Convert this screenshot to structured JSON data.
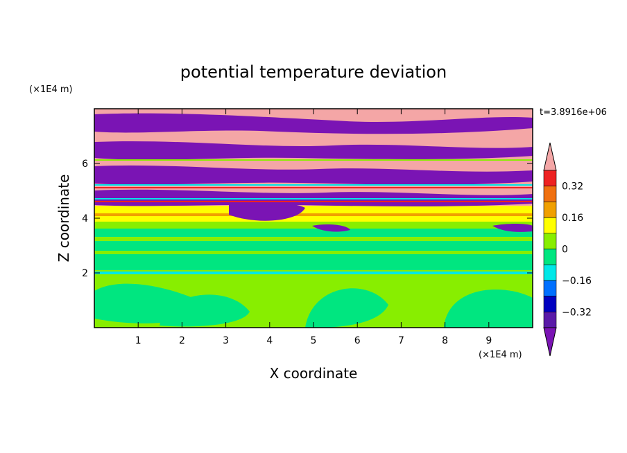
{
  "chart_data": {
    "type": "heatmap",
    "title": "potential temperature deviation",
    "xlabel": "X coordinate",
    "ylabel": "Z coordinate",
    "x_unit": "(×1E4 m)",
    "y_unit": "(×1E4 m)",
    "time_label": "t=3.8916e+06",
    "xlim": [
      0,
      10
    ],
    "ylim": [
      0,
      8
    ],
    "x_ticks": [
      "1",
      "2",
      "3",
      "4",
      "5",
      "6",
      "7",
      "8",
      "9"
    ],
    "y_ticks": [
      "2",
      "4",
      "6"
    ],
    "colorbar": {
      "labels": [
        "0.32",
        "0.16",
        "0",
        "-0.16",
        "-0.32"
      ],
      "level_step": 0.08,
      "colors_top_to_bottom": [
        "#f4a6a6",
        "#ee2222",
        "#f07010",
        "#f0a000",
        "#ffff00",
        "#88ee00",
        "#00e680",
        "#00e8e8",
        "#0070ff",
        "#0000c0",
        "#5a1aa8",
        "#7a14b4"
      ]
    }
  }
}
